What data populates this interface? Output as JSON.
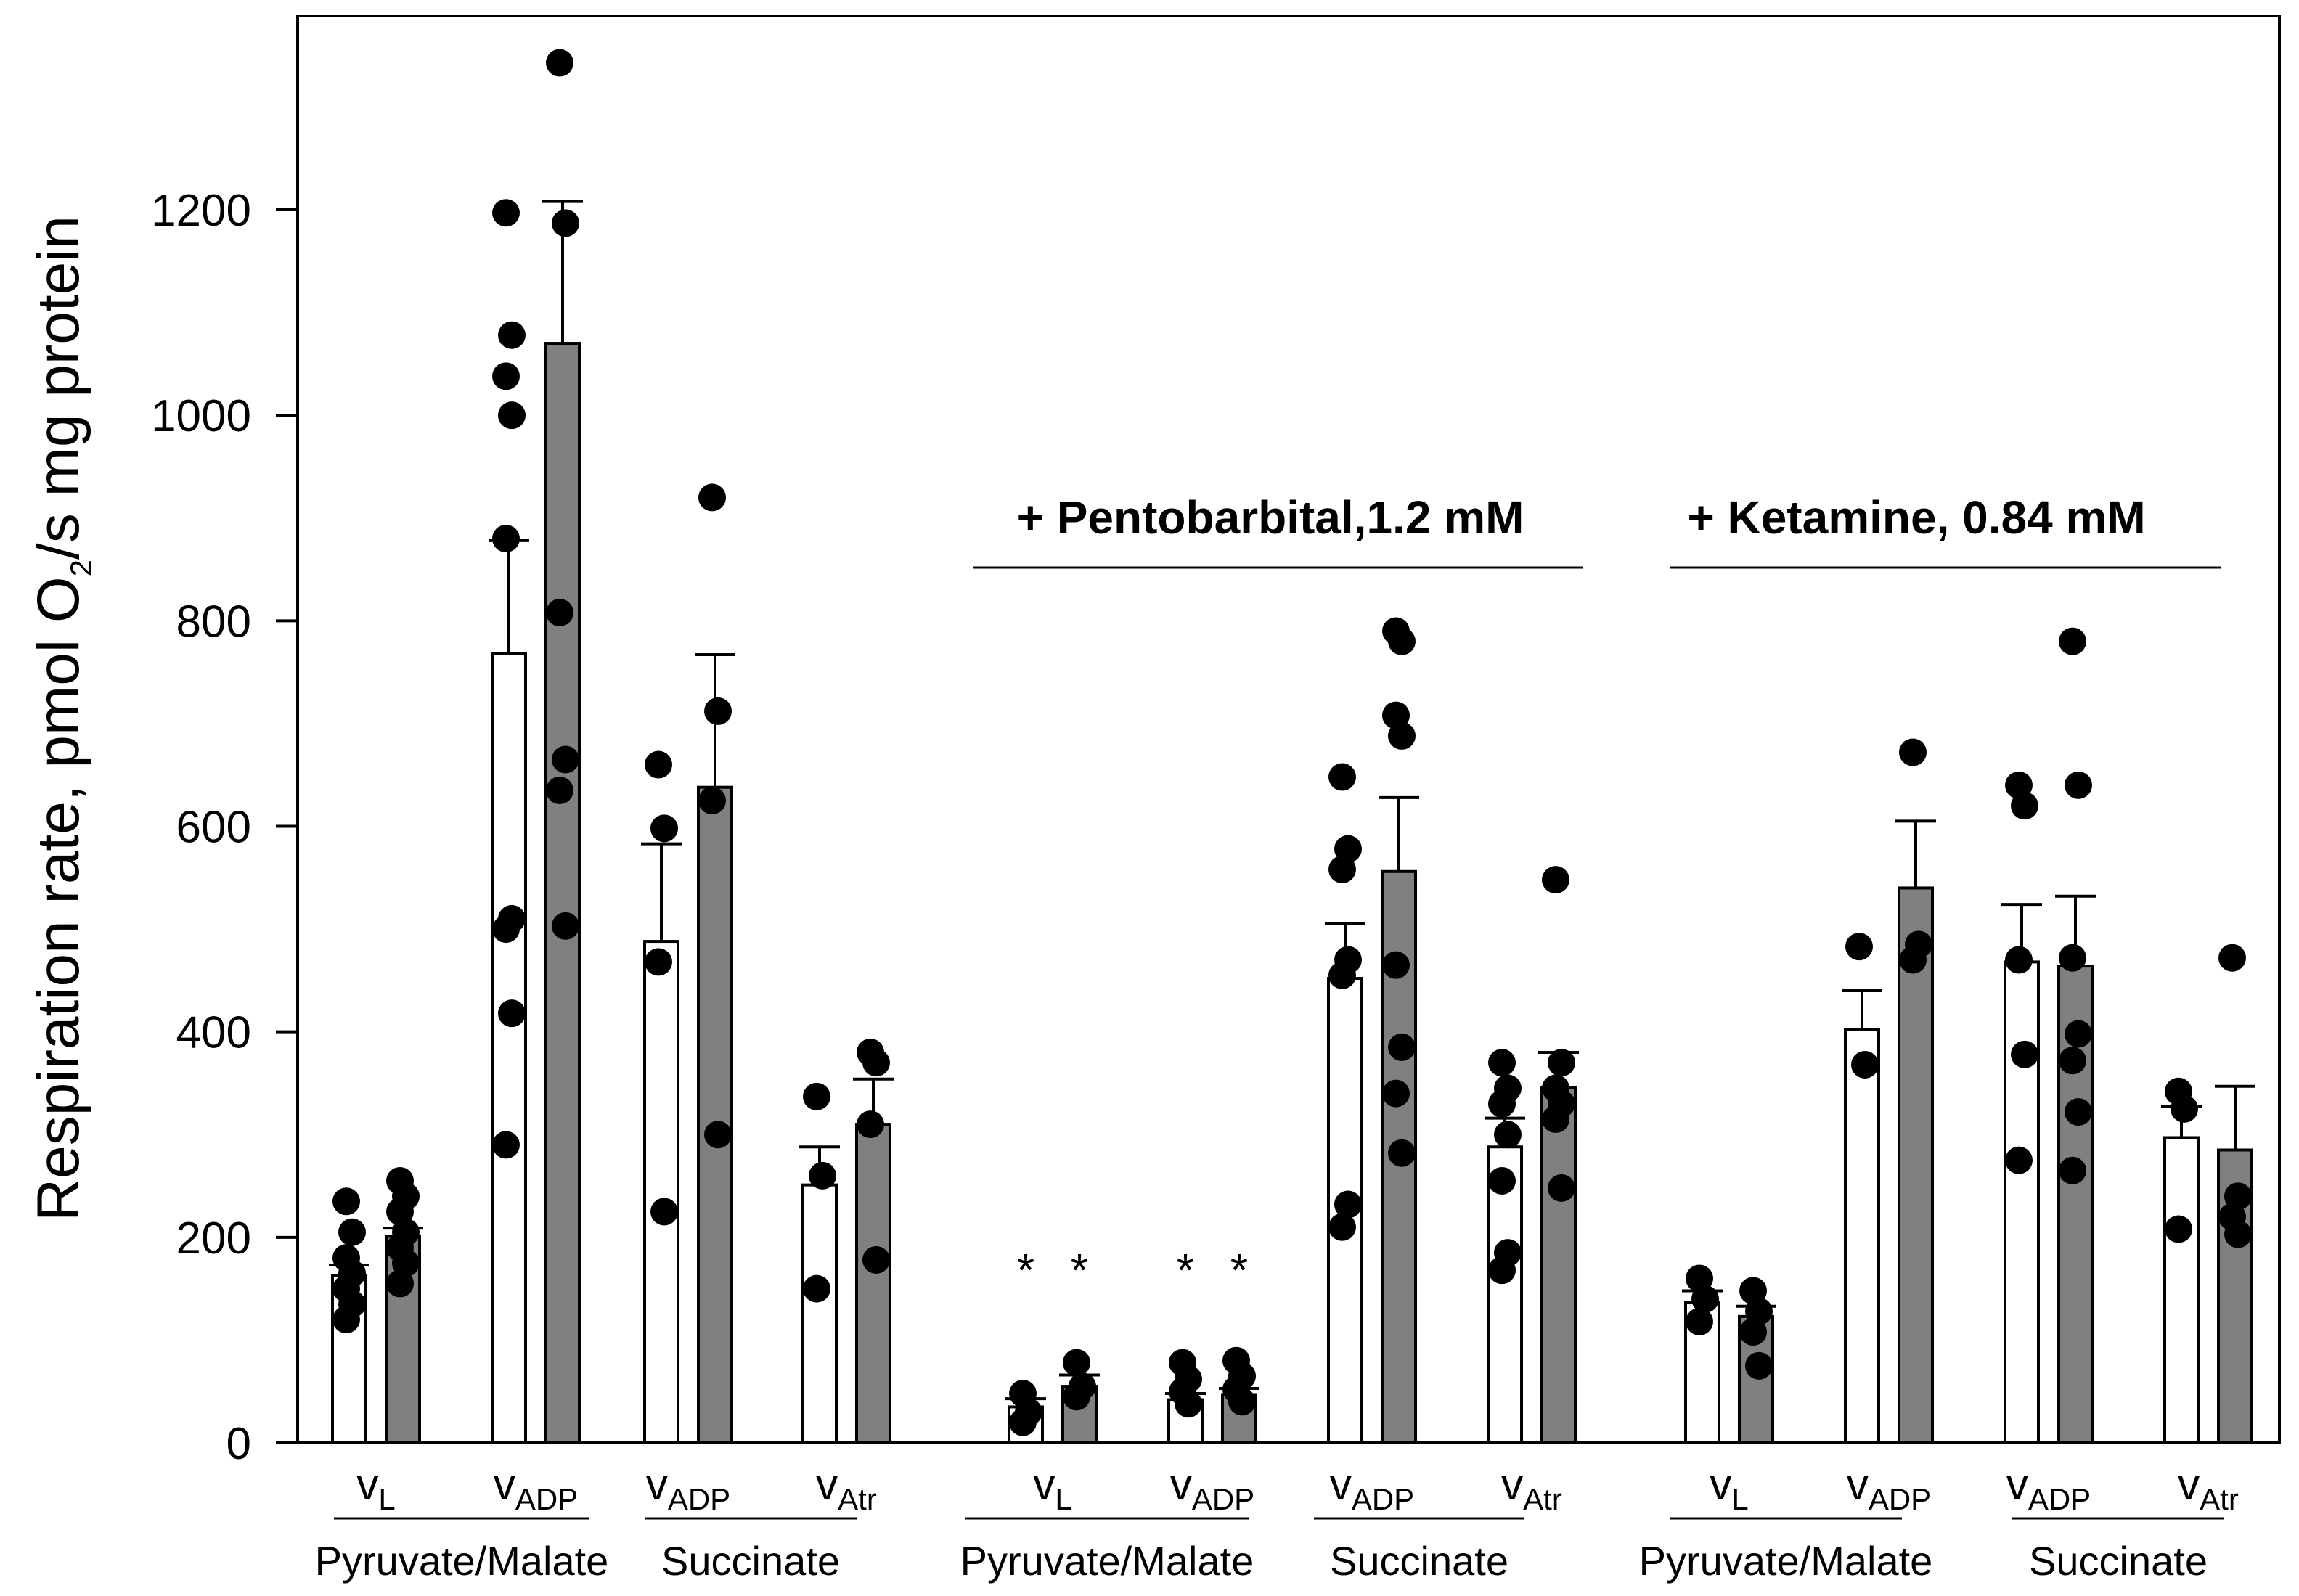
{
  "chart_data": {
    "type": "bar",
    "ylabel_main": "Respiration rate,  pmol O",
    "ylabel_sub": "2",
    "ylabel_tail": "/s mg protein",
    "ylim": [
      0,
      1380
    ],
    "yticks": [
      0,
      200,
      400,
      600,
      800,
      1000,
      1200
    ],
    "bar_colors": {
      "open": "#ffffff",
      "filled": "#808080"
    },
    "treatments": [
      {
        "label": "",
        "conditions": [
          {
            "rate": "v",
            "sub": "L",
            "substrate": "Pyruvate/Malate",
            "star": false,
            "bars": [
              {
                "fill": "open",
                "mean": 163,
                "sem": 10,
                "points": [
                  235,
                  205,
                  180,
                  165,
                  150,
                  135,
                  120
                ]
              },
              {
                "fill": "filled",
                "mean": 201,
                "sem": 8,
                "points": [
                  255,
                  240,
                  225,
                  205,
                  190,
                  175,
                  155
                ]
              }
            ]
          },
          {
            "rate": "v",
            "sub": "ADP",
            "substrate": "Pyruvate/Malate",
            "star": false,
            "bars": [
              {
                "fill": "open",
                "mean": 768,
                "sem": 110,
                "points": [
                  1197,
                  1078,
                  1038,
                  1000,
                  880,
                  510,
                  500,
                  418,
                  290
                ]
              },
              {
                "fill": "filled",
                "mean": 1070,
                "sem": 138,
                "points": [
                  1343,
                  1187,
                  808,
                  665,
                  635,
                  503
                ]
              }
            ]
          },
          {
            "rate": "v",
            "sub": "ADP",
            "substrate": "Succinate",
            "star": false,
            "bars": [
              {
                "fill": "open",
                "mean": 488,
                "sem": 95,
                "points": [
                  660,
                  598,
                  468,
                  225
                ]
              },
              {
                "fill": "filled",
                "mean": 638,
                "sem": 129,
                "points": [
                  920,
                  712,
                  625,
                  300
                ]
              }
            ]
          },
          {
            "rate": "v",
            "sub": "Atr",
            "substrate": "Succinate",
            "star": false,
            "bars": [
              {
                "fill": "open",
                "mean": 251,
                "sem": 37,
                "points": [
                  337,
                  260,
                  150
                ]
              },
              {
                "fill": "filled",
                "mean": 310,
                "sem": 44,
                "points": [
                  380,
                  370,
                  310,
                  178
                ]
              }
            ]
          }
        ]
      },
      {
        "label": "+ Pentobarbital,1.2 mM",
        "conditions": [
          {
            "rate": "v",
            "sub": "L",
            "substrate": "Pyruvate/Malate",
            "star": true,
            "bars": [
              {
                "fill": "open",
                "mean": 35,
                "sem": 8,
                "points": [
                  48,
                  30,
                  20
                ]
              },
              {
                "fill": "filled",
                "mean": 55,
                "sem": 11,
                "points": [
                  78,
                  55,
                  45
                ]
              }
            ]
          },
          {
            "rate": "v",
            "sub": "ADP",
            "substrate": "Pyruvate/Malate",
            "star": true,
            "bars": [
              {
                "fill": "open",
                "mean": 42,
                "sem": 6,
                "points": [
                  78,
                  62,
                  50,
                  38
                ]
              },
              {
                "fill": "filled",
                "mean": 47,
                "sem": 6,
                "points": [
                  80,
                  65,
                  52,
                  40
                ]
              }
            ]
          },
          {
            "rate": "v",
            "sub": "ADP",
            "substrate": "Succinate",
            "star": false,
            "bars": [
              {
                "fill": "open",
                "mean": 452,
                "sem": 53,
                "points": [
                  648,
                  578,
                  558,
                  470,
                  455,
                  232,
                  210
                ]
              },
              {
                "fill": "filled",
                "mean": 556,
                "sem": 72,
                "points": [
                  790,
                  780,
                  708,
                  688,
                  465,
                  385,
                  340,
                  282
                ]
              }
            ]
          },
          {
            "rate": "v",
            "sub": "Atr",
            "substrate": "Succinate",
            "star": false,
            "bars": [
              {
                "fill": "open",
                "mean": 288,
                "sem": 28,
                "points": [
                  370,
                  345,
                  330,
                  300,
                  255,
                  185,
                  168
                ]
              },
              {
                "fill": "filled",
                "mean": 346,
                "sem": 34,
                "points": [
                  548,
                  370,
                  345,
                  330,
                  315,
                  248
                ]
              }
            ]
          }
        ]
      },
      {
        "label": "+ Ketamine, 0.84 mM",
        "conditions": [
          {
            "rate": "v",
            "sub": "L",
            "substrate": "Pyruvate/Malate",
            "star": false,
            "bars": [
              {
                "fill": "open",
                "mean": 137,
                "sem": 11,
                "points": [
                  160,
                  140,
                  118
                ]
              },
              {
                "fill": "filled",
                "mean": 123,
                "sem": 10,
                "points": [
                  148,
                  128,
                  108,
                  75
                ]
              }
            ]
          },
          {
            "rate": "v",
            "sub": "ADP",
            "substrate": "Pyruvate/Malate",
            "star": false,
            "bars": [
              {
                "fill": "open",
                "mean": 402,
                "sem": 38,
                "points": [
                  483,
                  368
                ]
              },
              {
                "fill": "filled",
                "mean": 540,
                "sem": 65,
                "points": [
                  672,
                  485,
                  470
                ]
              }
            ]
          },
          {
            "rate": "v",
            "sub": "ADP",
            "substrate": "Succinate",
            "star": false,
            "bars": [
              {
                "fill": "open",
                "mean": 468,
                "sem": 56,
                "points": [
                  640,
                  620,
                  470,
                  378,
                  275
                ]
              },
              {
                "fill": "filled",
                "mean": 464,
                "sem": 68,
                "points": [
                  780,
                  640,
                  472,
                  398,
                  372,
                  322,
                  265
                ]
              }
            ]
          },
          {
            "rate": "v",
            "sub": "Atr",
            "substrate": "Succinate",
            "star": false,
            "bars": [
              {
                "fill": "open",
                "mean": 297,
                "sem": 30,
                "points": [
                  342,
                  325,
                  208
                ]
              },
              {
                "fill": "filled",
                "mean": 285,
                "sem": 62,
                "points": [
                  472,
                  240,
                  220,
                  203
                ]
              }
            ]
          }
        ]
      }
    ]
  }
}
